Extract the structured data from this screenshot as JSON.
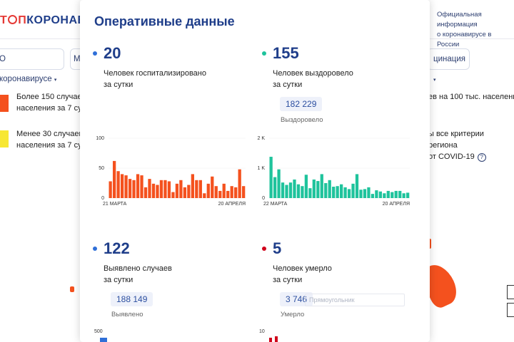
{
  "header": {
    "logo_part1": "Т",
    "logo_part2": "П",
    "logo_part3": "КОРОНАВИ",
    "official_line1": "Официальная информация",
    "official_line2": "о коронавирусе в России"
  },
  "nav": {
    "left_pill": "О коронавирусе",
    "mid_pill": "М",
    "right_pill": "цинация"
  },
  "legend": {
    "red_line1": "Более 150 случаев",
    "red_line2": "населения за 7 сут",
    "yellow_line1": "Менее 30 случаев",
    "yellow_line2": "населения за 7 сут",
    "right1": "ев на 100 тыс. населения",
    "right2_line1": "ы все критерии региона",
    "right2_line2": "от COVID-19",
    "help_icon_glyph": "?"
  },
  "panel": {
    "title": "Оперативные данные",
    "hospitalized": {
      "value": "20",
      "desc_line1": "Человек госпитализировано",
      "desc_line2": "за сутки",
      "dot_color": "#2f6fd8",
      "bar_color": "#f4511e"
    },
    "recovered": {
      "value": "155",
      "desc_line1": "Человек выздоровело",
      "desc_line2": "за сутки",
      "total": "182 229",
      "total_label": "Выздоровело",
      "dot_color": "#1fc39c",
      "bar_color": "#1fc39c"
    },
    "detected": {
      "value": "122",
      "desc_line1": "Выявлено случаев",
      "desc_line2": "за сутки",
      "total": "188 149",
      "total_label": "Выявлено",
      "dot_color": "#2f6fd8"
    },
    "died": {
      "value": "5",
      "desc_line1": "Человек умерло",
      "desc_line2": "за сутки",
      "total": "3 746",
      "total_label": "Умерло",
      "search_placeholder": "Прямоугольник",
      "dot_color": "#d0021b"
    }
  },
  "chart_data": [
    {
      "type": "bar",
      "y_ticks": [
        "100",
        "50",
        "0"
      ],
      "ylim": [
        0,
        100
      ],
      "x_start_label": "21 МАРТА",
      "x_end_label": "20 АПРЕЛЯ",
      "values": [
        28,
        62,
        45,
        40,
        38,
        32,
        30,
        40,
        38,
        18,
        32,
        24,
        22,
        30,
        30,
        28,
        10,
        24,
        30,
        18,
        22,
        40,
        30,
        30,
        8,
        24,
        36,
        20,
        12,
        24,
        12,
        20,
        18,
        48,
        20
      ]
    },
    {
      "type": "bar",
      "y_ticks": [
        "2 K",
        "1 K",
        "0"
      ],
      "ylim": [
        0,
        2000
      ],
      "x_start_label": "22 МАРТА",
      "x_end_label": "20 АПРЕЛЯ",
      "values": [
        1380,
        700,
        960,
        520,
        440,
        520,
        620,
        460,
        400,
        780,
        330,
        620,
        570,
        800,
        500,
        600,
        380,
        400,
        460,
        360,
        300,
        480,
        800,
        280,
        300,
        360,
        140,
        260,
        220,
        160,
        240,
        200,
        240,
        240,
        160,
        180
      ]
    }
  ],
  "partial_axes": {
    "left_top": "500",
    "right_top": "10"
  }
}
